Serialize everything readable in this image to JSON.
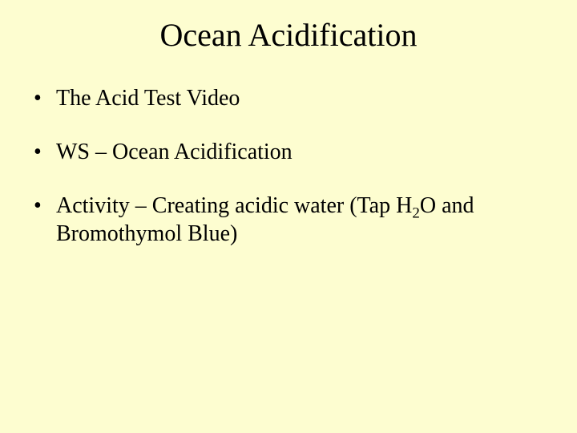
{
  "background_color": "#fdfdd0",
  "text_color": "#000000",
  "font_family": "Times New Roman",
  "title": {
    "text": "Ocean Acidification",
    "fontsize": 40,
    "align": "center"
  },
  "bullets": {
    "fontsize": 28,
    "items": [
      {
        "text": "The Acid Test Video"
      },
      {
        "text": "WS – Ocean Acidification"
      },
      {
        "prefix": "Activity – Creating acidic water (Tap H",
        "sub": "2",
        "suffix": "O and Bromothymol Blue)"
      }
    ]
  }
}
